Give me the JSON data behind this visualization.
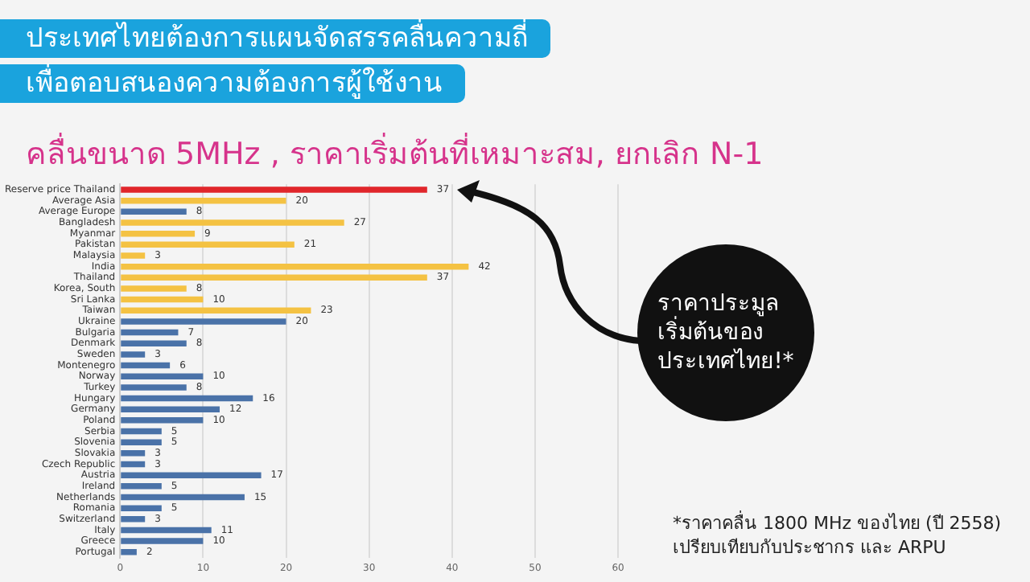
{
  "chart_data": {
    "type": "bar",
    "orientation": "horizontal",
    "title": "ประเทศไทยต้องการแผนจัดสรรคลื่นความถี่\nเพื่อตอบสนองความต้องการผู้ใช้งาน",
    "subtitle": "คลื่นขนาด 5MHz , ราคาเริ่มต้นที่เหมาะสม, ยกเลิก N-1",
    "categories": [
      "Reserve price Thailand",
      "Average Asia",
      "Average Europe",
      "Bangladesh",
      "Myanmar",
      "Pakistan",
      "Malaysia",
      "India",
      "Thailand",
      "Korea, South",
      "Sri Lanka",
      "Taiwan",
      "Ukraine",
      "Bulgaria",
      "Denmark",
      "Sweden",
      "Montenegro",
      "Norway",
      "Turkey",
      "Hungary",
      "Germany",
      "Poland",
      "Serbia",
      "Slovenia",
      "Slovakia",
      "Czech Republic",
      "Austria",
      "Ireland",
      "Netherlands",
      "Romania",
      "Switzerland",
      "Italy",
      "Greece",
      "Portugal"
    ],
    "values": [
      37,
      20,
      8,
      27,
      9,
      21,
      3,
      42,
      37,
      8,
      10,
      23,
      20,
      7,
      8,
      3,
      6,
      10,
      8,
      16,
      12,
      10,
      5,
      5,
      3,
      3,
      17,
      5,
      15,
      5,
      3,
      11,
      10,
      2
    ],
    "colors": [
      "#e0262b",
      "#f4c243",
      "#4a72a8",
      "#f4c243",
      "#f4c243",
      "#f4c243",
      "#f4c243",
      "#f4c243",
      "#f4c243",
      "#f4c243",
      "#f4c243",
      "#f4c243",
      "#4a72a8",
      "#4a72a8",
      "#4a72a8",
      "#4a72a8",
      "#4a72a8",
      "#4a72a8",
      "#4a72a8",
      "#4a72a8",
      "#4a72a8",
      "#4a72a8",
      "#4a72a8",
      "#4a72a8",
      "#4a72a8",
      "#4a72a8",
      "#4a72a8",
      "#4a72a8",
      "#4a72a8",
      "#4a72a8",
      "#4a72a8",
      "#4a72a8",
      "#4a72a8",
      "#4a72a8"
    ],
    "xlim": [
      0,
      60
    ],
    "xticks": [
      0,
      10,
      20,
      30,
      40,
      50,
      60
    ],
    "grid": "x",
    "legend": false,
    "data_labels": true,
    "annotations": [
      "ราคาประมูล\nเริ่มต้นของ\nประเทศไทย!*",
      "*ราคาคลื่น 1800 MHz ของไทย (ปี 2558)\nเปรียบเทียบกับประชากร และ ARPU"
    ]
  }
}
